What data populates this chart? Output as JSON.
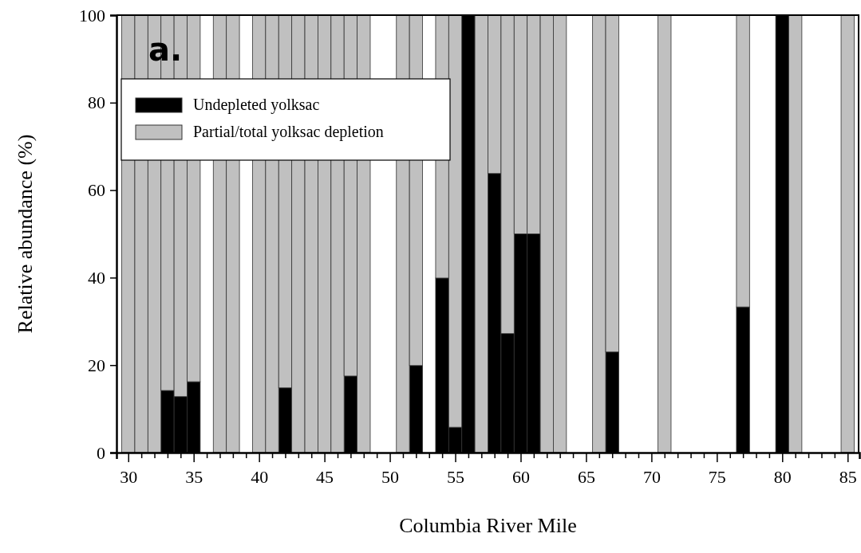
{
  "chart_data": {
    "type": "bar",
    "stacked": true,
    "xlabel": "Columbia River Mile",
    "ylabel": "Relative abundance (%)",
    "annotations": [
      "a."
    ],
    "x": [
      30,
      31,
      32,
      33,
      34,
      35,
      37,
      38,
      40,
      41,
      42,
      43,
      44,
      45,
      46,
      47,
      48,
      51,
      52,
      54,
      55,
      56,
      57,
      58,
      59,
      60,
      61,
      62,
      63,
      66,
      67,
      71,
      77,
      80,
      81,
      85
    ],
    "series": [
      {
        "name": "Undepleted yolksac",
        "color": "#000000",
        "values": [
          0,
          0,
          0,
          14.2,
          12.8,
          16.2,
          0,
          0,
          0,
          0,
          14.8,
          0,
          0,
          0,
          0,
          17.5,
          0,
          0,
          19.9,
          39.9,
          5.8,
          100,
          0,
          63.8,
          27.2,
          50,
          50,
          0,
          0,
          0,
          23,
          0,
          33.3,
          100,
          0,
          0
        ]
      },
      {
        "name": "Partial/total yolksac depletion",
        "color": "#c0c0c0",
        "values": [
          100,
          100,
          100,
          85.8,
          87.2,
          83.8,
          100,
          100,
          100,
          100,
          85.2,
          100,
          100,
          100,
          100,
          82.5,
          100,
          100,
          80.1,
          60.1,
          94.2,
          0,
          100,
          36.2,
          72.8,
          50,
          50,
          100,
          100,
          100,
          77,
          100,
          66.7,
          0,
          100,
          100
        ]
      }
    ],
    "xlim": [
      29.1,
      85.9
    ],
    "ylim": [
      0,
      100
    ],
    "xticks": [
      30,
      {
        "value": 31,
        "label": null
      },
      {
        "value": 32,
        "label": null
      },
      {
        "value": 33,
        "label": null
      },
      {
        "value": 34,
        "label": null
      },
      35,
      {
        "value": 36,
        "label": null
      },
      {
        "value": 37,
        "label": null
      },
      {
        "value": 38,
        "label": null
      },
      {
        "value": 39,
        "label": null
      },
      40,
      {
        "value": 41,
        "label": null
      },
      {
        "value": 42,
        "label": null
      },
      {
        "value": 43,
        "label": null
      },
      {
        "value": 44,
        "label": null
      },
      45,
      {
        "value": 46,
        "label": null
      },
      {
        "value": 47,
        "label": null
      },
      {
        "value": 48,
        "label": null
      },
      {
        "value": 49,
        "label": null
      },
      50,
      {
        "value": 51,
        "label": null
      },
      {
        "value": 52,
        "label": null
      },
      {
        "value": 53,
        "label": null
      },
      {
        "value": 54,
        "label": null
      },
      55,
      {
        "value": 56,
        "label": null
      },
      {
        "value": 57,
        "label": null
      },
      {
        "value": 58,
        "label": null
      },
      {
        "value": 59,
        "label": null
      },
      60,
      {
        "value": 61,
        "label": null
      },
      {
        "value": 62,
        "label": null
      },
      {
        "value": 63,
        "label": null
      },
      {
        "value": 64,
        "label": null
      },
      65,
      {
        "value": 66,
        "label": null
      },
      {
        "value": 67,
        "label": null
      },
      {
        "value": 68,
        "label": null
      },
      {
        "value": 69,
        "label": null
      },
      70,
      {
        "value": 71,
        "label": null
      },
      {
        "value": 72,
        "label": null
      },
      {
        "value": 73,
        "label": null
      },
      {
        "value": 74,
        "label": null
      },
      75,
      {
        "value": 76,
        "label": null
      },
      {
        "value": 77,
        "label": null
      },
      {
        "value": 78,
        "label": null
      },
      {
        "value": 79,
        "label": null
      },
      80,
      {
        "value": 81,
        "label": null
      },
      {
        "value": 82,
        "label": null
      },
      {
        "value": 83,
        "label": null
      },
      {
        "value": 84,
        "label": null
      },
      85
    ],
    "yticks": [
      0,
      20,
      40,
      60,
      80,
      100
    ],
    "legend": "top left",
    "grid": false
  }
}
